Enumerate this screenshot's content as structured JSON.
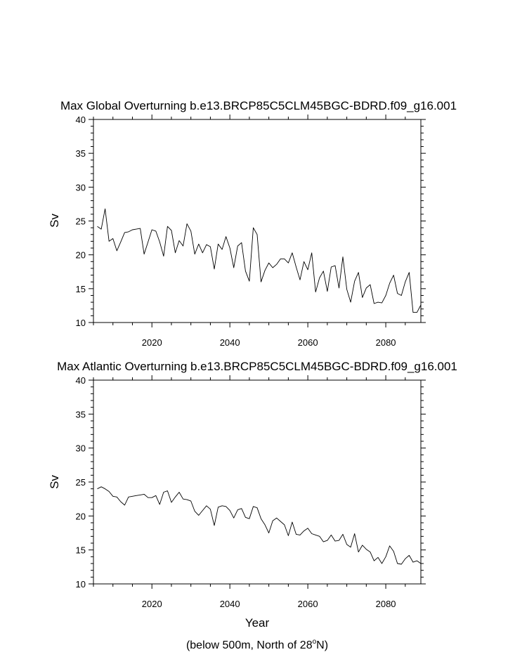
{
  "chart_data": [
    {
      "type": "line",
      "title": "Max Global Overturning b.e13.BRCP85C5CLM45BGC-BDRD.f09_g16.001",
      "ylabel": "Sv",
      "xlabel": "",
      "xlim": [
        2005,
        2089
      ],
      "ylim": [
        10,
        40
      ],
      "xticks": [
        2020,
        2040,
        2060,
        2080
      ],
      "yticks": [
        10,
        15,
        20,
        25,
        30,
        35,
        40
      ],
      "x_start": 2006,
      "values": [
        24.2,
        23.8,
        26.8,
        22.0,
        22.4,
        20.6,
        21.9,
        23.3,
        23.4,
        23.7,
        23.8,
        23.9,
        20.1,
        21.9,
        23.7,
        23.5,
        21.9,
        19.8,
        24.2,
        23.6,
        20.3,
        22.1,
        21.3,
        24.6,
        23.5,
        20.1,
        21.6,
        20.3,
        21.5,
        21.2,
        17.9,
        21.6,
        20.8,
        22.7,
        21.0,
        18.1,
        21.3,
        21.8,
        17.6,
        16.1,
        24.0,
        23.0,
        16.0,
        17.7,
        18.8,
        18.1,
        18.6,
        19.4,
        19.4,
        18.8,
        20.3,
        18.2,
        16.3,
        19.0,
        17.8,
        20.3,
        14.5,
        16.6,
        17.6,
        14.6,
        18.2,
        18.4,
        15.1,
        19.7,
        14.9,
        13.0,
        16.1,
        17.4,
        13.7,
        15.1,
        15.6,
        12.8,
        13.0,
        12.9,
        14.0,
        15.8,
        17.0,
        14.3,
        14.0,
        16.0,
        17.4,
        11.5,
        11.5,
        12.6
      ]
    },
    {
      "type": "line",
      "title": "Max Atlantic Overturning b.e13.BRCP85C5CLM45BGC-BDRD.f09_g16.001",
      "ylabel": "Sv",
      "xlabel": "Year",
      "xlim": [
        2005,
        2089
      ],
      "ylim": [
        10,
        40
      ],
      "xticks": [
        2020,
        2040,
        2060,
        2080
      ],
      "yticks": [
        10,
        15,
        20,
        25,
        30,
        35,
        40
      ],
      "x_start": 2006,
      "values": [
        24.0,
        24.3,
        24.0,
        23.6,
        22.9,
        22.8,
        22.1,
        21.6,
        22.8,
        22.9,
        23.0,
        23.1,
        23.2,
        22.7,
        22.7,
        23.0,
        21.7,
        23.5,
        23.7,
        22.0,
        22.8,
        23.5,
        22.5,
        22.4,
        22.2,
        20.7,
        20.1,
        20.8,
        21.5,
        21.0,
        18.6,
        21.3,
        21.5,
        21.4,
        20.8,
        19.7,
        20.9,
        21.1,
        19.8,
        19.6,
        21.4,
        21.2,
        19.6,
        18.7,
        17.5,
        19.3,
        19.7,
        19.2,
        18.7,
        17.1,
        19.1,
        17.3,
        17.2,
        17.8,
        18.2,
        17.4,
        17.2,
        17.0,
        16.2,
        16.4,
        17.2,
        16.3,
        16.4,
        17.3,
        15.8,
        15.4,
        17.4,
        14.7,
        15.7,
        15.1,
        14.7,
        13.4,
        13.9,
        13.0,
        14.0,
        15.6,
        14.8,
        13.0,
        12.9,
        13.7,
        14.2,
        13.2,
        13.4,
        13.0
      ]
    }
  ],
  "footnote": {
    "prefix": "(below 500m, North of 28",
    "degree": "o",
    "suffix": "N)"
  }
}
